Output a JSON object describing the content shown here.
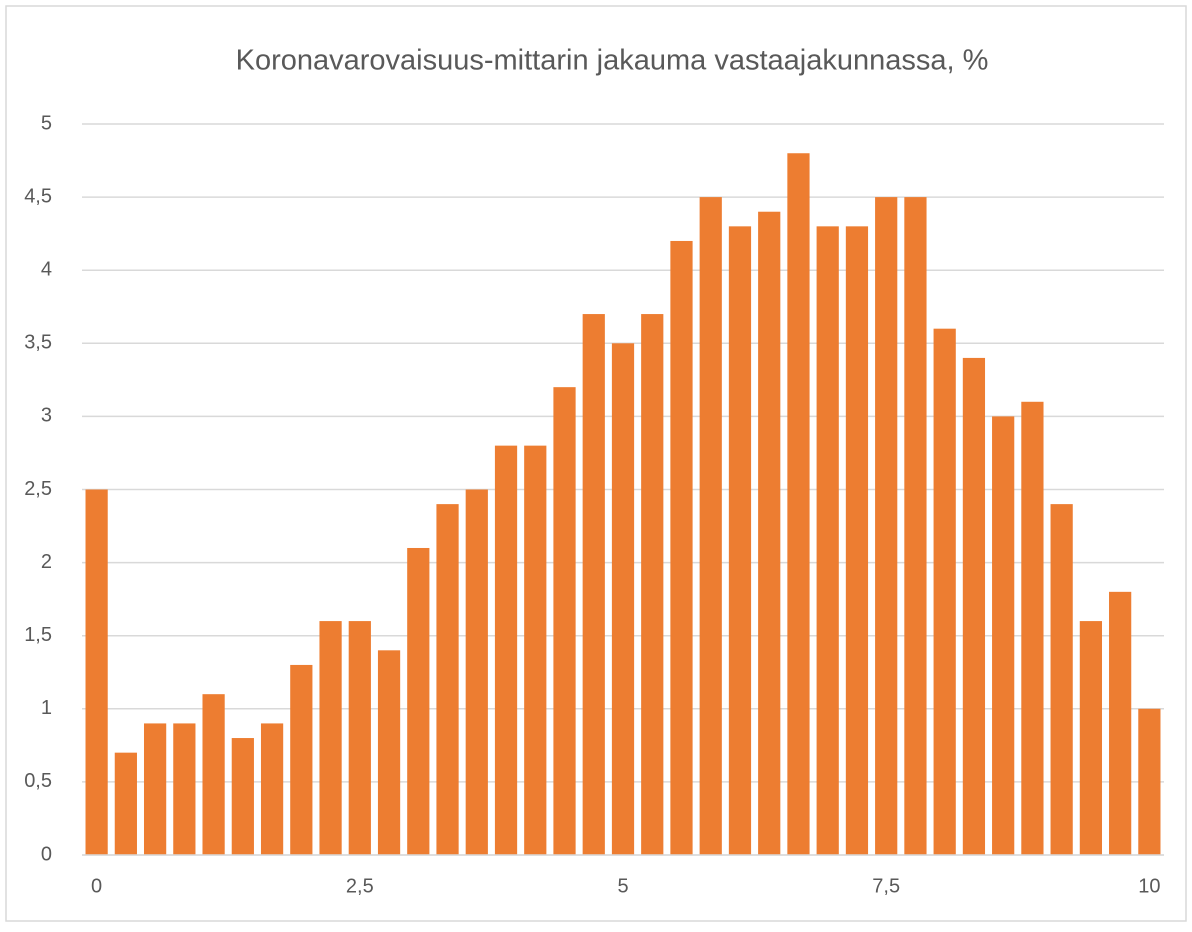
{
  "chart_data": {
    "type": "bar",
    "title": "Koronavarovaisuus-mittarin jakauma vastaajakunnassa, %",
    "categories": [
      "0",
      null,
      null,
      null,
      null,
      null,
      null,
      null,
      null,
      "2,5",
      null,
      null,
      null,
      null,
      null,
      null,
      null,
      null,
      "5",
      null,
      null,
      null,
      null,
      null,
      null,
      null,
      null,
      "7,5",
      null,
      null,
      null,
      null,
      null,
      null,
      null,
      null,
      "10"
    ],
    "values": [
      2.5,
      0.7,
      0.9,
      0.9,
      1.1,
      0.8,
      0.9,
      1.3,
      1.6,
      1.6,
      1.4,
      2.1,
      2.4,
      2.5,
      2.8,
      2.8,
      3.2,
      3.7,
      3.5,
      3.7,
      4.2,
      4.5,
      4.3,
      4.4,
      4.8,
      4.3,
      4.3,
      4.5,
      4.5,
      3.6,
      3.4,
      3.0,
      3.1,
      2.4,
      1.6,
      1.8,
      1.0
    ],
    "color": "#ed7d31",
    "ylim": [
      0,
      5
    ],
    "yticks": [
      0,
      {
        "value": 0.5,
        "label": "0,5"
      },
      1,
      {
        "value": 1.5,
        "label": "1,5"
      },
      2,
      {
        "value": 2.5,
        "label": "2,5"
      },
      3,
      {
        "value": 3.5,
        "label": "3,5"
      },
      4,
      {
        "value": 4.5,
        "label": "4,5"
      },
      5
    ],
    "grid": true
  }
}
